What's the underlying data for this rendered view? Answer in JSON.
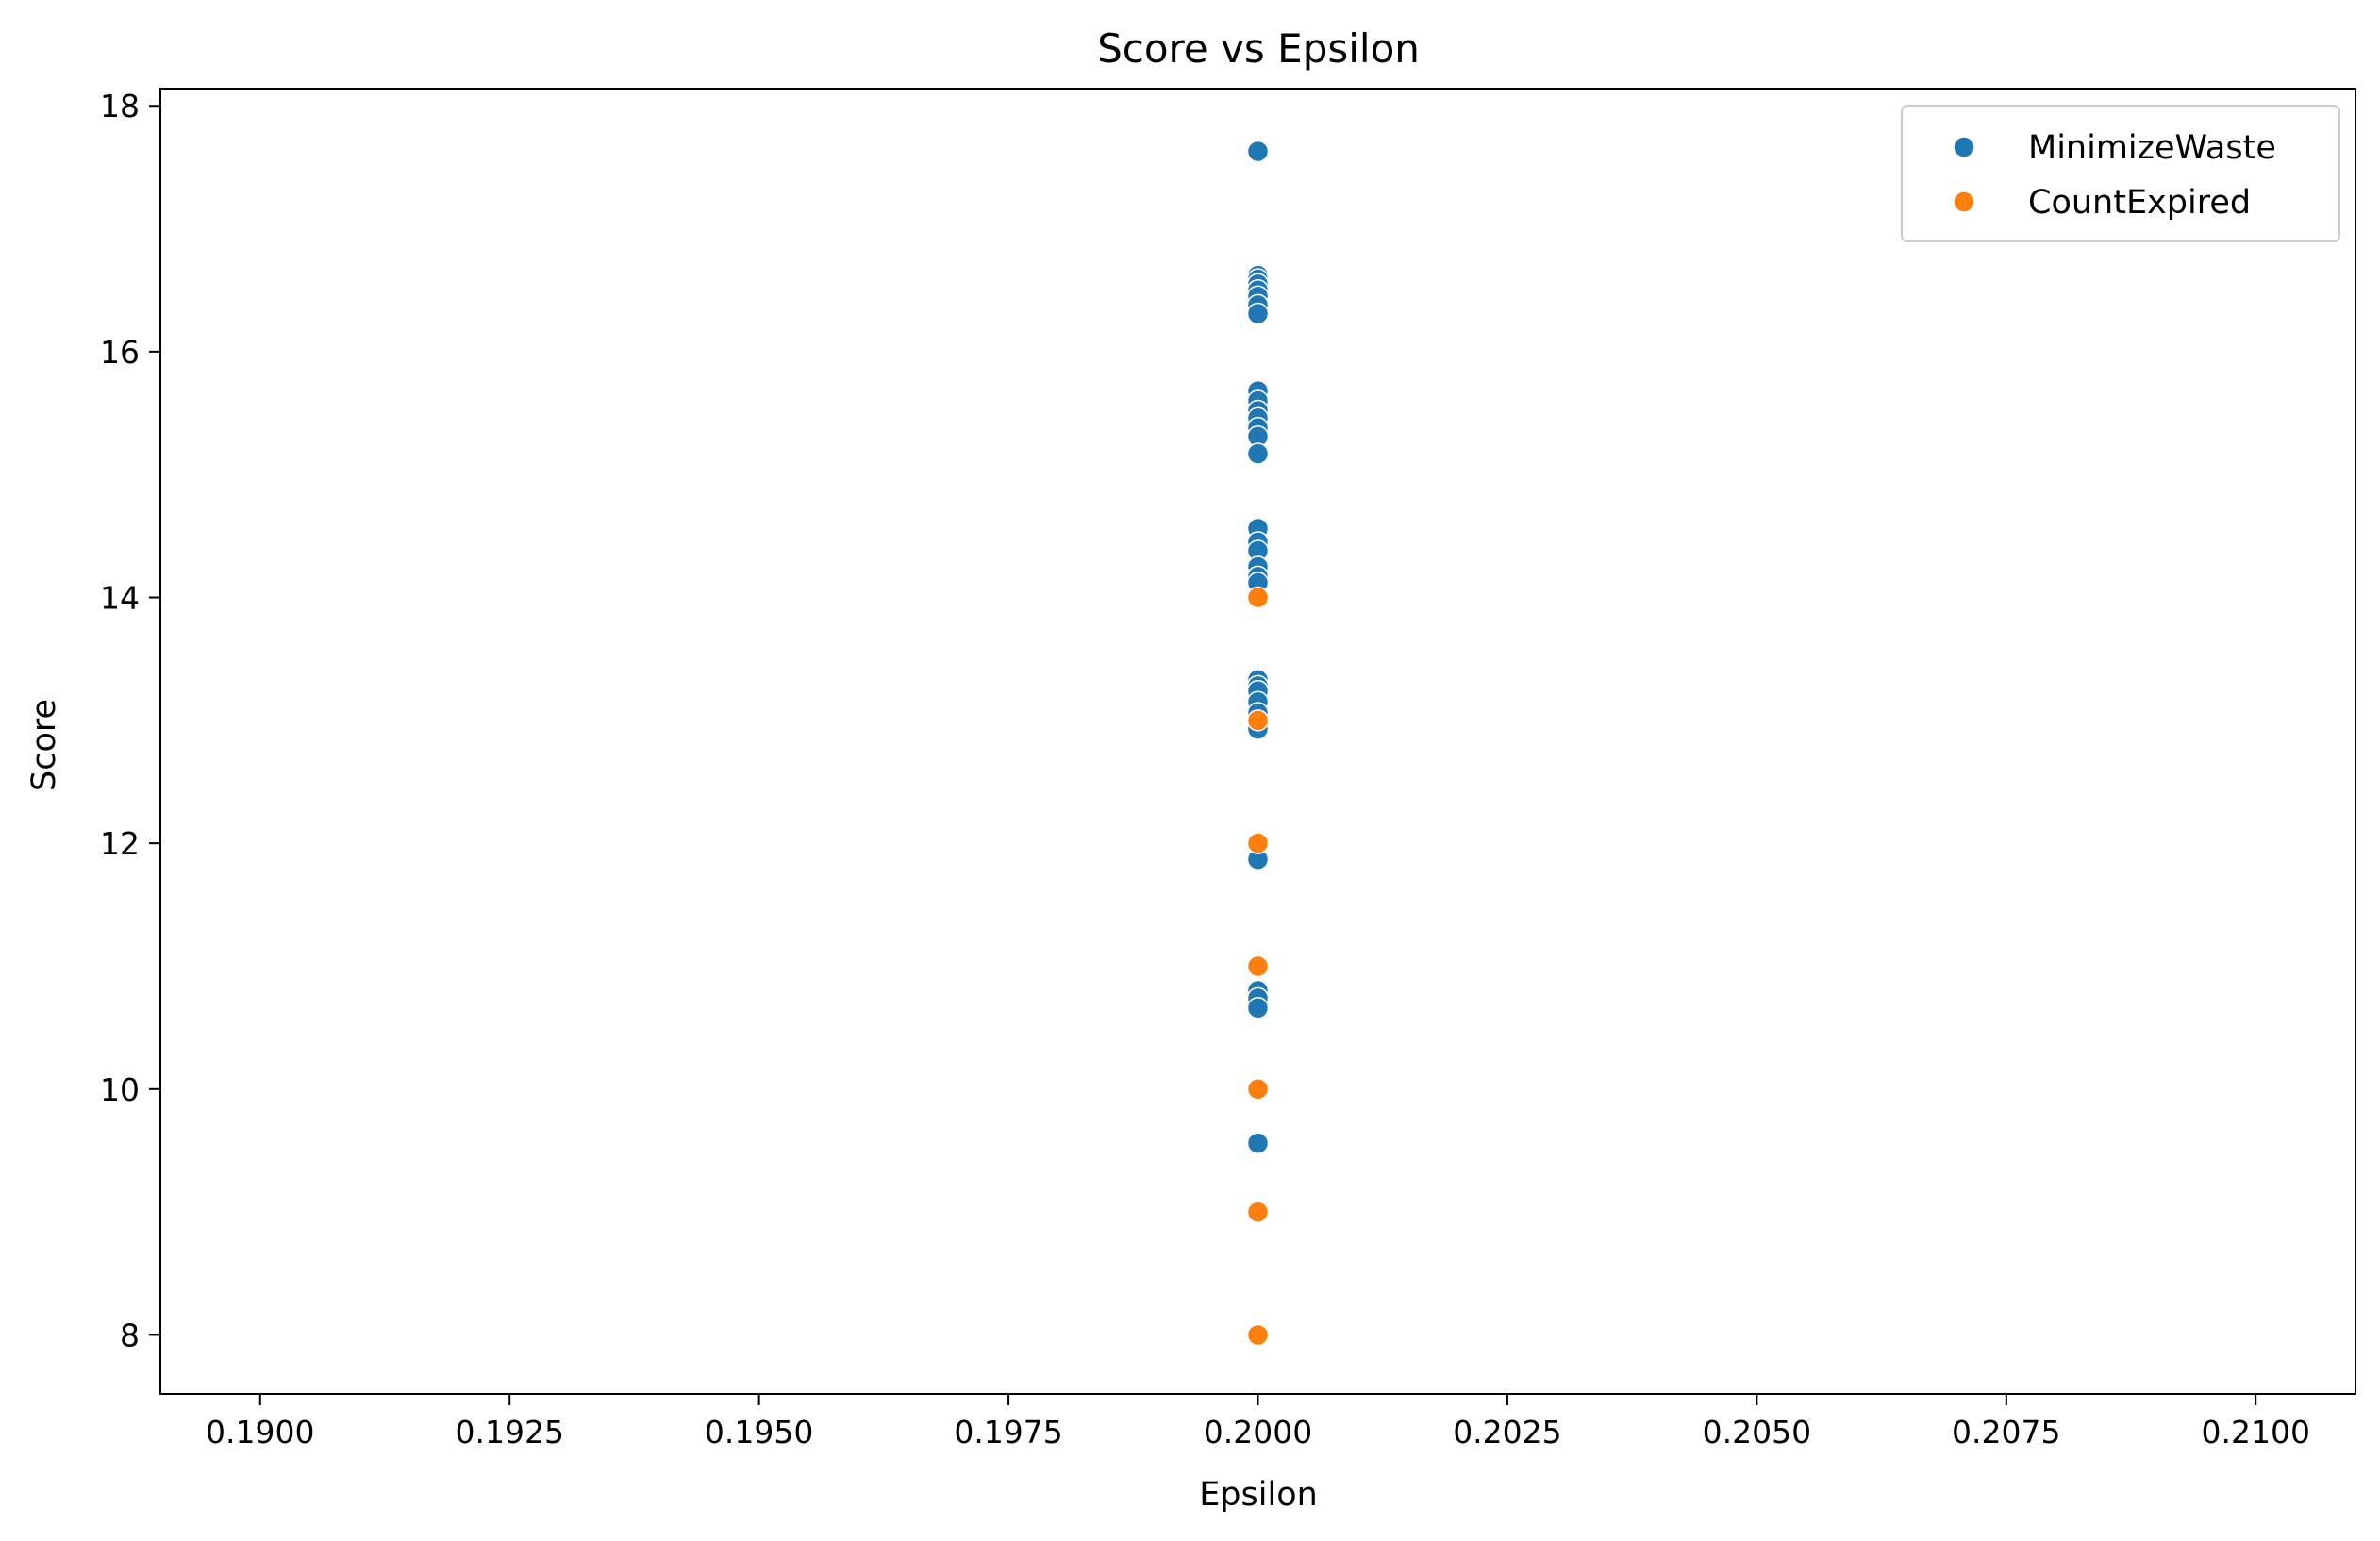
{
  "chart_data": {
    "type": "scatter",
    "title": "Score vs Epsilon",
    "xlabel": "Epsilon",
    "ylabel": "Score",
    "xlim": [
      0.189,
      0.211
    ],
    "ylim": [
      7.52,
      18.14
    ],
    "x_ticks": [
      0.19,
      0.1925,
      0.195,
      0.1975,
      0.2,
      0.2025,
      0.205,
      0.2075,
      0.21
    ],
    "x_tick_labels": [
      "0.1900",
      "0.1925",
      "0.1950",
      "0.1975",
      "0.2000",
      "0.2025",
      "0.2050",
      "0.2075",
      "0.2100"
    ],
    "y_ticks": [
      8,
      10,
      12,
      14,
      16,
      18
    ],
    "y_tick_labels": [
      "8",
      "10",
      "12",
      "14",
      "16",
      "18"
    ],
    "grid": false,
    "legend_position": "top-right",
    "series": [
      {
        "name": "MinimizeWaste",
        "color": "#1f77b4",
        "x": [
          0.2,
          0.2,
          0.2,
          0.2,
          0.2,
          0.2,
          0.2,
          0.2,
          0.2,
          0.2,
          0.2,
          0.2,
          0.2,
          0.2,
          0.2,
          0.2,
          0.2,
          0.2,
          0.2,
          0.2,
          0.2,
          0.2,
          0.2,
          0.2,
          0.2,
          0.2,
          0.2,
          0.2,
          0.2,
          0.2,
          0.2,
          0.2,
          0.2,
          0.2
        ],
        "y": [
          17.64,
          17.63,
          16.62,
          16.59,
          16.55,
          16.5,
          16.45,
          16.38,
          16.31,
          15.68,
          15.6,
          15.52,
          15.46,
          15.38,
          15.31,
          15.17,
          14.56,
          14.45,
          14.38,
          14.25,
          14.17,
          14.12,
          13.33,
          13.28,
          13.24,
          13.15,
          13.06,
          12.97,
          12.93,
          11.87,
          10.8,
          10.74,
          10.66,
          9.56
        ]
      },
      {
        "name": "CountExpired",
        "color": "#ff7f0e",
        "x": [
          0.2,
          0.2,
          0.2,
          0.2,
          0.2,
          0.2,
          0.2
        ],
        "y": [
          14.0,
          13.0,
          12.0,
          11.0,
          10.0,
          9.0,
          8.0
        ]
      }
    ]
  }
}
